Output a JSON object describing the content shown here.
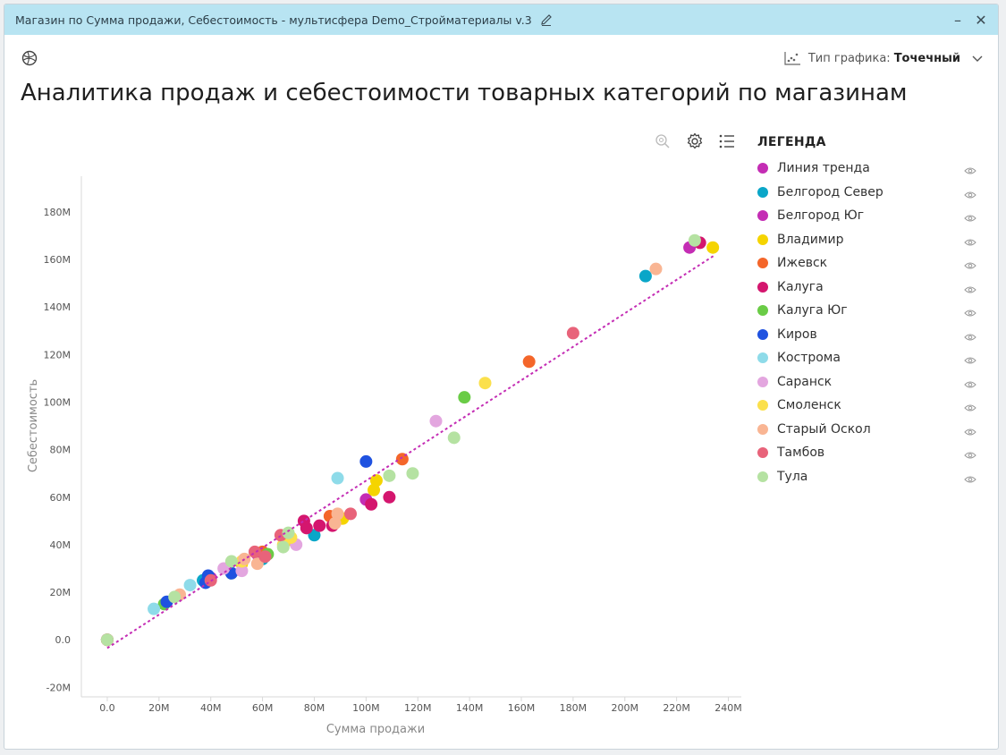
{
  "window": {
    "title": "Магазин по Сумма продажи, Себестоимость - мультисфера Demo_Стройматериалы v.3",
    "minimize_label": "–",
    "close_label": "✕"
  },
  "toolbar": {
    "chart_type_label": "Тип графика:",
    "chart_type_value": "Точечный"
  },
  "page_title": "Аналитика продаж и себестоимости товарных категорий по магазинам",
  "legend": {
    "title": "ЛЕГЕНДА",
    "items": [
      {
        "label": "Линия тренда",
        "color": "#c42db4"
      },
      {
        "label": "Белгород Север",
        "color": "#0aa6c8"
      },
      {
        "label": "Белгород Юг",
        "color": "#c42db4"
      },
      {
        "label": "Владимир",
        "color": "#f5d400"
      },
      {
        "label": "Ижевск",
        "color": "#f4662a"
      },
      {
        "label": "Калуга",
        "color": "#d4166e"
      },
      {
        "label": "Калуга Юг",
        "color": "#6acc46"
      },
      {
        "label": "Киров",
        "color": "#1f52e0"
      },
      {
        "label": "Кострома",
        "color": "#8edbe9"
      },
      {
        "label": "Саранск",
        "color": "#e3a6df"
      },
      {
        "label": "Смоленск",
        "color": "#fbe04c"
      },
      {
        "label": "Старый Оскол",
        "color": "#f9b593"
      },
      {
        "label": "Тамбов",
        "color": "#e8637a"
      },
      {
        "label": "Тула",
        "color": "#b5e2a2"
      }
    ]
  },
  "chart_data": {
    "type": "scatter",
    "xlabel": "Сумма продажи",
    "ylabel": "Себестоимость",
    "xlim": [
      -10000000,
      245000000
    ],
    "ylim": [
      -24000000,
      195000000
    ],
    "xticks": [
      0,
      20000000,
      40000000,
      60000000,
      80000000,
      100000000,
      120000000,
      140000000,
      160000000,
      180000000,
      200000000,
      220000000,
      240000000
    ],
    "xtick_labels": [
      "0.0",
      "20M",
      "40M",
      "60M",
      "80M",
      "100M",
      "120M",
      "140M",
      "160M",
      "180M",
      "200M",
      "220M",
      "240M"
    ],
    "yticks": [
      -20000000,
      0,
      20000000,
      40000000,
      60000000,
      80000000,
      100000000,
      120000000,
      140000000,
      160000000,
      180000000
    ],
    "ytick_labels": [
      "-20M",
      "0.0",
      "20M",
      "40M",
      "60M",
      "80M",
      "100M",
      "120M",
      "140M",
      "160M",
      "180M"
    ],
    "trend": {
      "name": "Линия тренда",
      "x": [
        0,
        235000000
      ],
      "y": [
        -3500000,
        162000000
      ]
    },
    "series": [
      {
        "name": "Белгород Север",
        "points": [
          [
            208000000,
            153000000
          ],
          [
            80000000,
            44000000
          ],
          [
            60000000,
            34000000
          ],
          [
            37000000,
            25000000
          ],
          [
            0,
            0
          ]
        ]
      },
      {
        "name": "Белгород Юг",
        "points": [
          [
            225000000,
            165000000
          ],
          [
            100000000,
            59000000
          ],
          [
            58000000,
            36000000
          ],
          [
            40000000,
            26000000
          ],
          [
            0,
            0
          ]
        ]
      },
      {
        "name": "Владимир",
        "points": [
          [
            234000000,
            165000000
          ],
          [
            104000000,
            67000000
          ],
          [
            103000000,
            63000000
          ],
          [
            91000000,
            51000000
          ],
          [
            70000000,
            42000000
          ],
          [
            52000000,
            32000000
          ],
          [
            0,
            0
          ]
        ]
      },
      {
        "name": "Ижевск",
        "points": [
          [
            163000000,
            117000000
          ],
          [
            114000000,
            76000000
          ],
          [
            86000000,
            52000000
          ],
          [
            60000000,
            37000000
          ],
          [
            0,
            0
          ]
        ]
      },
      {
        "name": "Калуга",
        "points": [
          [
            229000000,
            167000000
          ],
          [
            109000000,
            60000000
          ],
          [
            102000000,
            57000000
          ],
          [
            76000000,
            50000000
          ],
          [
            82000000,
            48000000
          ],
          [
            77000000,
            47000000
          ],
          [
            87000000,
            48000000
          ],
          [
            0,
            0
          ]
        ]
      },
      {
        "name": "Калуга Юг",
        "points": [
          [
            138000000,
            102000000
          ],
          [
            62000000,
            36000000
          ],
          [
            48000000,
            28000000
          ],
          [
            22000000,
            15000000
          ],
          [
            0,
            0
          ]
        ]
      },
      {
        "name": "Киров",
        "points": [
          [
            100000000,
            75000000
          ],
          [
            39000000,
            27000000
          ],
          [
            38000000,
            24000000
          ],
          [
            23000000,
            16000000
          ],
          [
            48000000,
            28000000
          ],
          [
            0,
            0
          ]
        ]
      },
      {
        "name": "Кострома",
        "points": [
          [
            89000000,
            68000000
          ],
          [
            18000000,
            13000000
          ],
          [
            32000000,
            23000000
          ],
          [
            0,
            0
          ]
        ]
      },
      {
        "name": "Саранск",
        "points": [
          [
            127000000,
            92000000
          ],
          [
            73000000,
            40000000
          ],
          [
            52000000,
            29000000
          ],
          [
            45000000,
            30000000
          ],
          [
            0,
            0
          ]
        ]
      },
      {
        "name": "Смоленск",
        "points": [
          [
            146000000,
            108000000
          ],
          [
            71000000,
            43000000
          ],
          [
            68000000,
            40000000
          ],
          [
            52000000,
            33000000
          ],
          [
            0,
            0
          ]
        ]
      },
      {
        "name": "Старый Оскол",
        "points": [
          [
            212000000,
            156000000
          ],
          [
            89000000,
            53000000
          ],
          [
            88000000,
            49000000
          ],
          [
            58000000,
            32000000
          ],
          [
            53000000,
            34000000
          ],
          [
            28000000,
            19000000
          ],
          [
            0,
            0
          ]
        ]
      },
      {
        "name": "Тамбов",
        "points": [
          [
            180000000,
            129000000
          ],
          [
            94000000,
            53000000
          ],
          [
            67000000,
            44000000
          ],
          [
            61000000,
            35000000
          ],
          [
            57000000,
            37000000
          ],
          [
            40000000,
            25000000
          ],
          [
            0,
            0
          ]
        ]
      },
      {
        "name": "Тула",
        "points": [
          [
            227000000,
            168000000
          ],
          [
            134000000,
            85000000
          ],
          [
            118000000,
            70000000
          ],
          [
            109000000,
            69000000
          ],
          [
            70000000,
            45000000
          ],
          [
            68000000,
            39000000
          ],
          [
            48000000,
            33000000
          ],
          [
            26000000,
            18000000
          ],
          [
            0,
            0
          ]
        ]
      }
    ]
  }
}
